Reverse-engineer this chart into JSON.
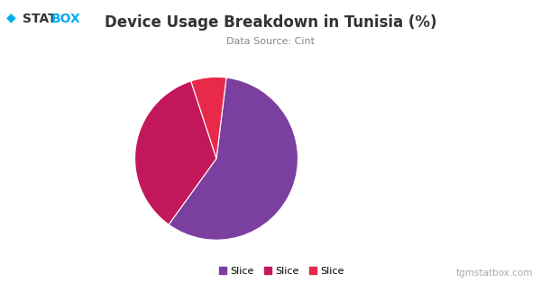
{
  "title": "Device Usage Breakdown in Tunisia (%)",
  "subtitle": "Data Source: Cint",
  "slices": [
    58,
    35,
    7
  ],
  "slice_colors": [
    "#7B3FA0",
    "#C2185B",
    "#E8294A"
  ],
  "legend_labels": [
    "Slice",
    "Slice",
    "Slice"
  ],
  "startangle": 83,
  "background_color": "#ffffff",
  "title_fontsize": 12,
  "subtitle_fontsize": 8,
  "legend_fontsize": 8,
  "logo_diamond_color": "#00AEEF",
  "logo_stat_color": "#333333",
  "logo_box_color": "#00AEEF",
  "footer_text": "tgmstatbox.com",
  "footer_color": "#aaaaaa",
  "footer_fontsize": 7.5,
  "logo_fontsize": 10
}
